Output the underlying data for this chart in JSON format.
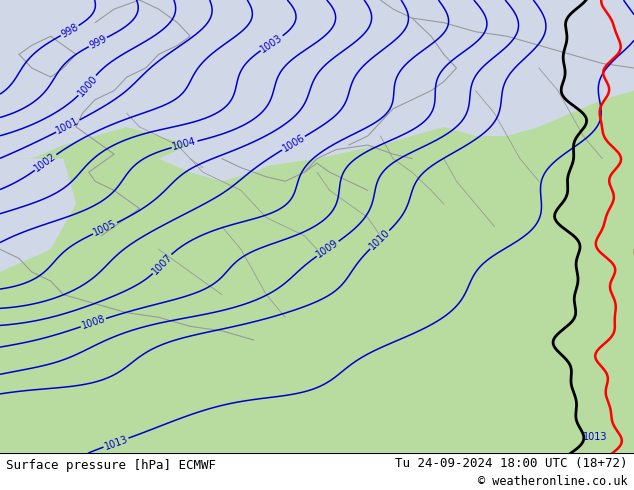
{
  "title_left": "Surface pressure [hPa] ECMWF",
  "title_right": "Tu 24-09-2024 18:00 UTC (18+72)",
  "copyright": "© weatheronline.co.uk",
  "bg_green": "#b8dca0",
  "sea_color": "#d0d8e8",
  "contour_color": "#0000cc",
  "red_line_color": "#ff0000",
  "black_line_color": "#000000",
  "coast_color": "#999999",
  "bottom_bar_color": "#ffffff",
  "bottom_text_color": "#000000",
  "figsize": [
    6.34,
    4.9
  ],
  "dpi": 100,
  "title_fontsize": 9,
  "label_fontsize": 7
}
